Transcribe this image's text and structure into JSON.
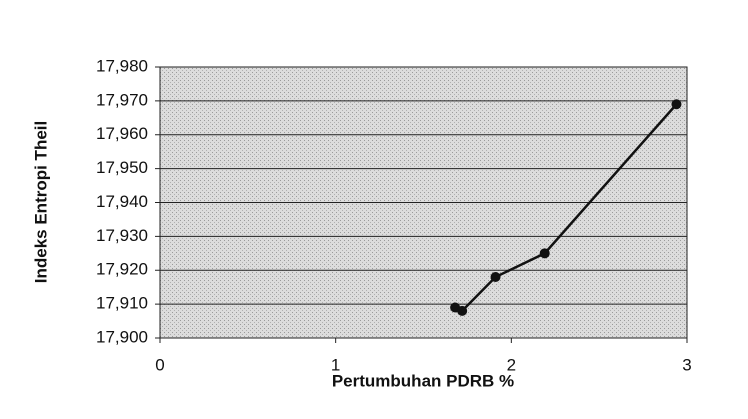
{
  "chart_data": {
    "type": "line",
    "xlabel": "Pertumbuhan PDRB %",
    "ylabel": "Indeks Entropi Theil",
    "x": [
      1.68,
      1.72,
      1.91,
      2.19,
      2.94
    ],
    "values": [
      17.909,
      17.908,
      17.918,
      17.925,
      17.969
    ],
    "color": "#111111",
    "xlim": [
      0,
      3
    ],
    "xticks": [
      0,
      1,
      2,
      3
    ],
    "ylim": [
      17.9,
      17.98
    ],
    "yticks": [
      {
        "value": 17.9,
        "label": "17,900"
      },
      {
        "value": 17.91,
        "label": "17,910"
      },
      {
        "value": 17.92,
        "label": "17,920"
      },
      {
        "value": 17.93,
        "label": "17,930"
      },
      {
        "value": 17.94,
        "label": "17,940"
      },
      {
        "value": 17.95,
        "label": "17,950"
      },
      {
        "value": 17.96,
        "label": "17,960"
      },
      {
        "value": 17.97,
        "label": "17,970"
      },
      {
        "value": 17.98,
        "label": "17,980"
      }
    ],
    "grid": true
  }
}
